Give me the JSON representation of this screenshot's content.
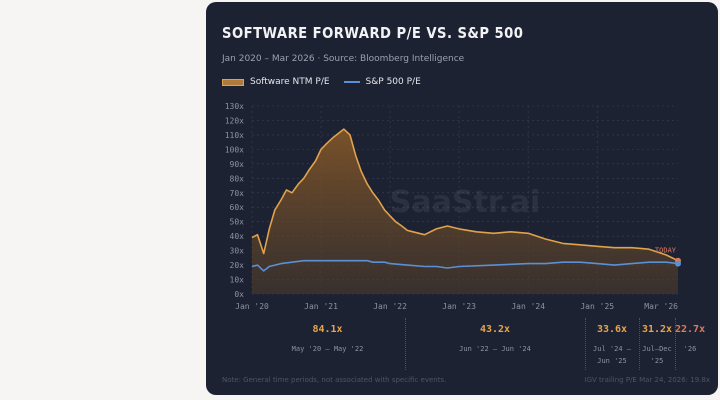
{
  "chart_data": {
    "type": "line",
    "title": "SOFTWARE FORWARD P/E VS. S&P 500",
    "subtitle": "Jan 2020 – Mar 2026  ·  Source: Bloomberg Intelligence",
    "xlabel": "",
    "ylabel": "",
    "ylim": [
      0,
      130
    ],
    "y_ticks": [
      "0x",
      "10x",
      "20x",
      "30x",
      "40x",
      "50x",
      "60x",
      "70x",
      "80x",
      "90x",
      "100x",
      "110x",
      "120x",
      "130x"
    ],
    "y_tick_values": [
      0,
      10,
      20,
      30,
      40,
      50,
      60,
      70,
      80,
      90,
      100,
      110,
      120,
      130
    ],
    "x_ticks": [
      "Jan '20",
      "Jan '21",
      "Jan '22",
      "Jan '23",
      "Jan '24",
      "Jan '25",
      "Mar '26"
    ],
    "x_tick_values": [
      2020.0,
      2021.0,
      2022.0,
      2023.0,
      2024.0,
      2025.0,
      2026.17
    ],
    "grid": true,
    "legend_position": "top-left",
    "watermark": "SaaStr.ai",
    "annotation": "TODAY",
    "series": [
      {
        "name": "Software NTM P/E",
        "color": "#e0a24a",
        "fill": "area",
        "x": [
          2020.0,
          2020.08,
          2020.17,
          2020.25,
          2020.33,
          2020.42,
          2020.5,
          2020.58,
          2020.67,
          2020.75,
          2020.83,
          2020.92,
          2021.0,
          2021.08,
          2021.17,
          2021.25,
          2021.33,
          2021.42,
          2021.5,
          2021.58,
          2021.67,
          2021.75,
          2021.83,
          2021.92,
          2022.0,
          2022.08,
          2022.17,
          2022.25,
          2022.33,
          2022.5,
          2022.67,
          2022.83,
          2023.0,
          2023.25,
          2023.5,
          2023.75,
          2024.0,
          2024.25,
          2024.5,
          2024.75,
          2025.0,
          2025.25,
          2025.5,
          2025.75,
          2026.0,
          2026.17
        ],
        "values": [
          39,
          41,
          28,
          45,
          58,
          65,
          72,
          70,
          76,
          80,
          86,
          92,
          100,
          104,
          108,
          111,
          114,
          110,
          96,
          85,
          76,
          70,
          65,
          58,
          54,
          50,
          47,
          44,
          43,
          41,
          45,
          47,
          45,
          43,
          42,
          43,
          42,
          38,
          35,
          34,
          33,
          32,
          32,
          31,
          27,
          23
        ]
      },
      {
        "name": "S&P 500 P/E",
        "color": "#5b8fd6",
        "fill": "none",
        "x": [
          2020.0,
          2020.08,
          2020.17,
          2020.25,
          2020.42,
          2020.58,
          2020.75,
          2021.0,
          2021.25,
          2021.5,
          2021.67,
          2021.75,
          2021.92,
          2022.0,
          2022.25,
          2022.5,
          2022.67,
          2022.83,
          2023.0,
          2023.5,
          2024.0,
          2024.25,
          2024.5,
          2024.75,
          2025.0,
          2025.25,
          2025.5,
          2025.75,
          2026.0,
          2026.17
        ],
        "values": [
          19,
          20,
          16,
          19,
          21,
          22,
          23,
          23,
          23,
          23,
          23,
          22,
          22,
          21,
          20,
          19,
          19,
          18,
          19,
          20,
          21,
          21,
          22,
          22,
          21,
          20,
          21,
          22,
          22,
          21
        ]
      }
    ],
    "periods": [
      {
        "value": "84.1x",
        "label": "May '20 – May '22"
      },
      {
        "value": "43.2x",
        "label": "Jun '22 – Jun '24"
      },
      {
        "value": "33.6x",
        "label": "Jul '24 – Jun '25"
      },
      {
        "value": "31.2x",
        "label": "Jul–Dec '25"
      },
      {
        "value": "22.7x",
        "label": "'26"
      }
    ]
  },
  "footer": {
    "note": "Note: General time periods, not associated with specific events.",
    "note_right": "IGV trailing P/E Mar 24, 2026: 19.8x"
  }
}
